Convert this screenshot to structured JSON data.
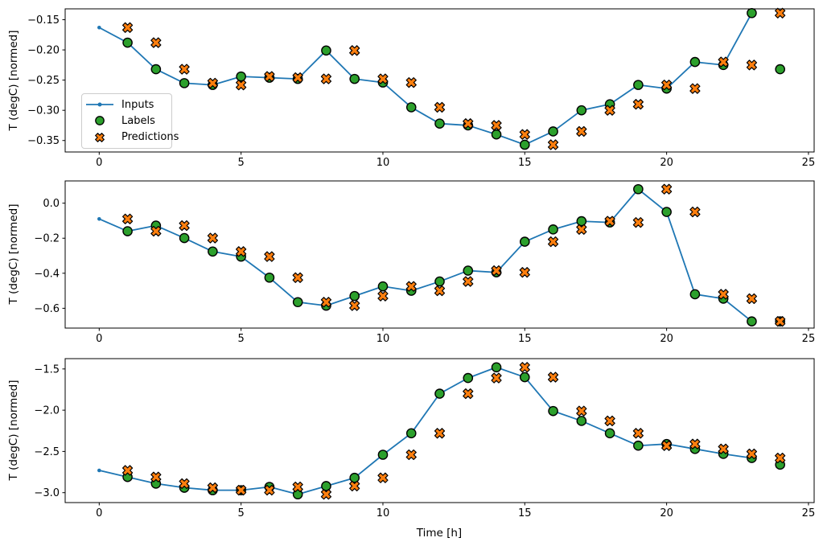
{
  "colors": {
    "inputs_line": "#1f77b4",
    "labels_marker": "#2ca02c",
    "predictions_marker": "#ff7f0e",
    "marker_edge": "#000000",
    "axis": "#000000",
    "legend_border": "#cccccc",
    "background": "#ffffff"
  },
  "legend": {
    "location": "upper left of first subplot"
  },
  "labels": {
    "ylabel": "T (degC) [normed]",
    "xlabel": "Time [h]"
  },
  "chart_data": [
    {
      "type": "line",
      "ylabel": "T (degC) [normed]",
      "xlim": [
        -1.2,
        25.2
      ],
      "ylim": [
        -0.369,
        -0.132
      ],
      "xticks": {
        "values": [
          0,
          5,
          10,
          15,
          20,
          25
        ],
        "labels": [
          "0",
          "5",
          "10",
          "15",
          "20",
          "25"
        ],
        "show_labels": true
      },
      "yticks": {
        "values": [
          -0.15,
          -0.2,
          -0.25,
          -0.3,
          -0.35
        ],
        "labels": [
          "−0.15",
          "−0.20",
          "−0.25",
          "−0.30",
          "−0.35"
        ]
      },
      "series": [
        {
          "name": "Inputs",
          "marker": "dot-line",
          "color": "#1f77b4",
          "x": [
            0,
            1,
            2,
            3,
            4,
            5,
            6,
            7,
            8,
            9,
            10,
            11,
            12,
            13,
            14,
            15,
            16,
            17,
            18,
            19,
            20,
            21,
            22,
            23
          ],
          "values": [
            -0.163,
            -0.188,
            -0.232,
            -0.255,
            -0.258,
            -0.244,
            -0.246,
            -0.248,
            -0.201,
            -0.248,
            -0.254,
            -0.295,
            -0.322,
            -0.325,
            -0.34,
            -0.357,
            -0.335,
            -0.3,
            -0.29,
            -0.258,
            -0.264,
            -0.22,
            -0.225,
            -0.139
          ]
        },
        {
          "name": "Labels",
          "marker": "circle",
          "color": "#2ca02c",
          "edge": "#000000",
          "x": [
            1,
            2,
            3,
            4,
            5,
            6,
            7,
            8,
            9,
            10,
            11,
            12,
            13,
            14,
            15,
            16,
            17,
            18,
            19,
            20,
            21,
            22,
            23,
            24
          ],
          "values": [
            -0.188,
            -0.232,
            -0.255,
            -0.258,
            -0.244,
            -0.246,
            -0.248,
            -0.201,
            -0.248,
            -0.254,
            -0.295,
            -0.322,
            -0.325,
            -0.34,
            -0.357,
            -0.335,
            -0.3,
            -0.29,
            -0.258,
            -0.264,
            -0.22,
            -0.225,
            -0.139,
            -0.232
          ]
        },
        {
          "name": "Predictions",
          "marker": "X",
          "color": "#ff7f0e",
          "edge": "#000000",
          "x": [
            1,
            2,
            3,
            4,
            5,
            6,
            7,
            8,
            9,
            10,
            11,
            12,
            13,
            14,
            15,
            16,
            17,
            18,
            19,
            20,
            21,
            22,
            23,
            24
          ],
          "values": [
            -0.163,
            -0.188,
            -0.232,
            -0.255,
            -0.258,
            -0.244,
            -0.246,
            -0.248,
            -0.201,
            -0.248,
            -0.254,
            -0.295,
            -0.322,
            -0.325,
            -0.34,
            -0.357,
            -0.335,
            -0.3,
            -0.29,
            -0.258,
            -0.264,
            -0.22,
            -0.225,
            -0.139
          ]
        }
      ]
    },
    {
      "type": "line",
      "ylabel": "T (degC) [normed]",
      "xlim": [
        -1.2,
        25.2
      ],
      "ylim": [
        -0.713,
        0.127
      ],
      "xticks": {
        "values": [
          0,
          5,
          10,
          15,
          20,
          25
        ],
        "labels": [
          "0",
          "5",
          "10",
          "15",
          "20",
          "25"
        ],
        "show_labels": true
      },
      "yticks": {
        "values": [
          0.0,
          -0.2,
          -0.4,
          -0.6
        ],
        "labels": [
          "0.0",
          "−0.2",
          "−0.4",
          "−0.6"
        ]
      },
      "series": [
        {
          "name": "Inputs",
          "marker": "dot-line",
          "color": "#1f77b4",
          "x": [
            0,
            1,
            2,
            3,
            4,
            5,
            6,
            7,
            8,
            9,
            10,
            11,
            12,
            13,
            14,
            15,
            16,
            17,
            18,
            19,
            20,
            21,
            22,
            23
          ],
          "values": [
            -0.09,
            -0.16,
            -0.128,
            -0.199,
            -0.276,
            -0.305,
            -0.425,
            -0.565,
            -0.585,
            -0.53,
            -0.475,
            -0.5,
            -0.447,
            -0.385,
            -0.395,
            -0.22,
            -0.15,
            -0.103,
            -0.11,
            0.08,
            -0.05,
            -0.52,
            -0.545,
            -0.675
          ]
        },
        {
          "name": "Labels",
          "marker": "circle",
          "color": "#2ca02c",
          "edge": "#000000",
          "x": [
            1,
            2,
            3,
            4,
            5,
            6,
            7,
            8,
            9,
            10,
            11,
            12,
            13,
            14,
            15,
            16,
            17,
            18,
            19,
            20,
            21,
            22,
            23,
            24
          ],
          "values": [
            -0.16,
            -0.128,
            -0.199,
            -0.276,
            -0.305,
            -0.425,
            -0.565,
            -0.585,
            -0.53,
            -0.475,
            -0.5,
            -0.447,
            -0.385,
            -0.395,
            -0.22,
            -0.15,
            -0.103,
            -0.11,
            0.08,
            -0.05,
            -0.52,
            -0.545,
            -0.675,
            -0.675
          ]
        },
        {
          "name": "Predictions",
          "marker": "X",
          "color": "#ff7f0e",
          "edge": "#000000",
          "x": [
            1,
            2,
            3,
            4,
            5,
            6,
            7,
            8,
            9,
            10,
            11,
            12,
            13,
            14,
            15,
            16,
            17,
            18,
            19,
            20,
            21,
            22,
            23,
            24
          ],
          "values": [
            -0.09,
            -0.16,
            -0.128,
            -0.199,
            -0.276,
            -0.305,
            -0.425,
            -0.565,
            -0.585,
            -0.53,
            -0.475,
            -0.5,
            -0.447,
            -0.385,
            -0.395,
            -0.22,
            -0.15,
            -0.103,
            -0.11,
            0.08,
            -0.05,
            -0.52,
            -0.545,
            -0.675
          ]
        }
      ]
    },
    {
      "type": "line",
      "ylabel": "T (degC) [normed]",
      "xlabel": "Time [h]",
      "xlim": [
        -1.2,
        25.2
      ],
      "ylim": [
        -3.12,
        -1.375
      ],
      "xticks": {
        "values": [
          0,
          5,
          10,
          15,
          20,
          25
        ],
        "labels": [
          "0",
          "5",
          "10",
          "15",
          "20",
          "25"
        ],
        "show_labels": true
      },
      "yticks": {
        "values": [
          -1.5,
          -2.0,
          -2.5,
          -3.0
        ],
        "labels": [
          "−1.5",
          "−2.0",
          "−2.5",
          "−3.0"
        ]
      },
      "series": [
        {
          "name": "Inputs",
          "marker": "dot-line",
          "color": "#1f77b4",
          "x": [
            0,
            1,
            2,
            3,
            4,
            5,
            6,
            7,
            8,
            9,
            10,
            11,
            12,
            13,
            14,
            15,
            16,
            17,
            18,
            19,
            20,
            21,
            22,
            23
          ],
          "values": [
            -2.73,
            -2.81,
            -2.89,
            -2.94,
            -2.97,
            -2.97,
            -2.93,
            -3.02,
            -2.92,
            -2.82,
            -2.54,
            -2.28,
            -1.8,
            -1.61,
            -1.48,
            -1.6,
            -2.01,
            -2.13,
            -2.28,
            -2.43,
            -2.41,
            -2.47,
            -2.53,
            -2.58
          ]
        },
        {
          "name": "Labels",
          "marker": "circle",
          "color": "#2ca02c",
          "edge": "#000000",
          "x": [
            1,
            2,
            3,
            4,
            5,
            6,
            7,
            8,
            9,
            10,
            11,
            12,
            13,
            14,
            15,
            16,
            17,
            18,
            19,
            20,
            21,
            22,
            23,
            24
          ],
          "values": [
            -2.81,
            -2.89,
            -2.94,
            -2.97,
            -2.97,
            -2.93,
            -3.02,
            -2.92,
            -2.82,
            -2.54,
            -2.28,
            -1.8,
            -1.61,
            -1.48,
            -1.6,
            -2.01,
            -2.13,
            -2.28,
            -2.43,
            -2.41,
            -2.47,
            -2.53,
            -2.58,
            -2.66
          ]
        },
        {
          "name": "Predictions",
          "marker": "X",
          "color": "#ff7f0e",
          "edge": "#000000",
          "x": [
            1,
            2,
            3,
            4,
            5,
            6,
            7,
            8,
            9,
            10,
            11,
            12,
            13,
            14,
            15,
            16,
            17,
            18,
            19,
            20,
            21,
            22,
            23,
            24
          ],
          "values": [
            -2.73,
            -2.81,
            -2.89,
            -2.94,
            -2.97,
            -2.97,
            -2.93,
            -3.02,
            -2.92,
            -2.82,
            -2.54,
            -2.28,
            -1.8,
            -1.61,
            -1.48,
            -1.6,
            -2.01,
            -2.13,
            -2.28,
            -2.43,
            -2.41,
            -2.47,
            -2.53,
            -2.58
          ]
        }
      ]
    }
  ]
}
